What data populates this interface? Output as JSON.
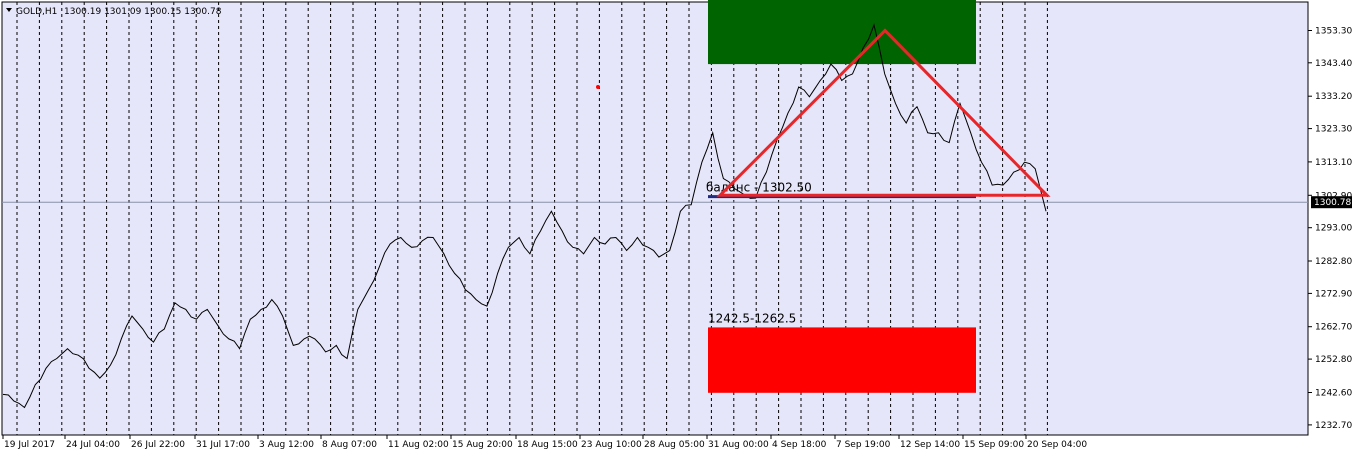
{
  "header": {
    "symbol_label": "GOLD,H1",
    "ohlc": "1300.19 1301.09 1300.15 1300.78"
  },
  "colors": {
    "background": "#e6e6fa",
    "price_line": "#000000",
    "grid": "#000000",
    "target_up_zone": "#006400",
    "target_down_zone": "#ff0000",
    "triangle": "#e8262a",
    "neckline": "#1f2a80",
    "current_price_badge": "#000000"
  },
  "chart_data": {
    "type": "line",
    "title": "",
    "xlabel": "",
    "ylabel": "",
    "ylim": [
      1229.6,
      1362.0
    ],
    "y_ticks": [
      "1353.30",
      "1343.40",
      "1333.20",
      "1323.30",
      "1313.10",
      "1302.90",
      "1293.00",
      "1282.80",
      "1272.90",
      "1262.70",
      "1252.80",
      "1242.60",
      "1232.70"
    ],
    "x_ticks": [
      "19 Jul 2017",
      "24 Jul 04:00",
      "26 Jul 22:00",
      "31 Jul 17:00",
      "3 Aug 12:00",
      "8 Aug 07:00",
      "11 Aug 02:00",
      "15 Aug 20:00",
      "18 Aug 15:00",
      "23 Aug 10:00",
      "28 Aug 05:00",
      "31 Aug 00:00",
      "4 Sep 18:00",
      "7 Sep 19:00",
      "12 Sep 14:00",
      "15 Sep 09:00",
      "20 Sep 04:00"
    ],
    "current_price": "1300.78",
    "series": [
      {
        "values": [
          1242,
          1240,
          1238,
          1245,
          1250,
          1253,
          1256,
          1254,
          1250,
          1247,
          1251,
          1259,
          1266,
          1262,
          1258,
          1262,
          1270,
          1268,
          1265,
          1268,
          1263,
          1259,
          1256,
          1265,
          1268,
          1271,
          1266,
          1257,
          1259,
          1259,
          1255,
          1257,
          1253,
          1268,
          1274,
          1281,
          1288,
          1290,
          1287,
          1289,
          1290,
          1285,
          1279,
          1274,
          1271,
          1269,
          1279,
          1287,
          1290,
          1285,
          1292,
          1298,
          1292,
          1287,
          1285,
          1290,
          1288,
          1290,
          1286,
          1290,
          1287,
          1284,
          1286,
          1298,
          1300,
          1313,
          1322,
          1308,
          1305,
          1303,
          1302,
          1310,
          1320,
          1328,
          1336,
          1333,
          1338,
          1343,
          1338,
          1340,
          1348,
          1355,
          1340,
          1331,
          1325,
          1330,
          1322,
          1322,
          1319,
          1331,
          1322,
          1313,
          1306,
          1306,
          1310,
          1313,
          1311,
          1298
        ]
      }
    ],
    "annotations": {
      "upper_zone": {
        "from": 1343.0,
        "to": 1363.0
      },
      "lower_zone": {
        "from": 1242.5,
        "to": 1262.5,
        "label": "1242.5-1262.5"
      },
      "triangle": [
        [
          1302.9,
          1302.9
        ],
        [
          1353.3,
          1353.3
        ]
      ],
      "neckline": {
        "value": 1302.5,
        "label": "баланс - 1302.50"
      },
      "red_dot": 1336.0,
      "price_line": 1300.78
    }
  }
}
